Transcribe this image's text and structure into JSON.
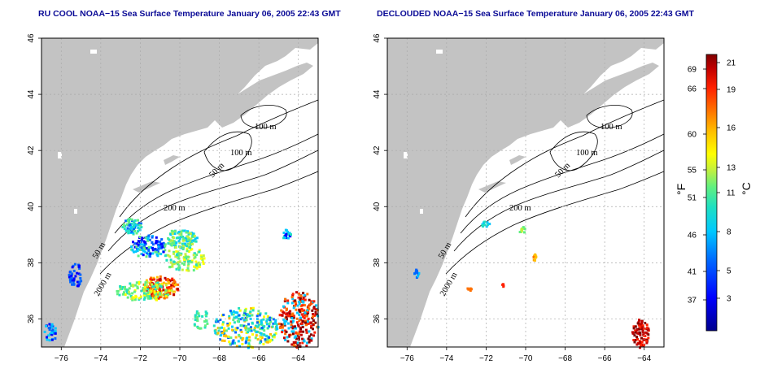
{
  "panels": [
    {
      "id": "left",
      "title": "RU COOL NOAA−15 Sea Surface Temperature January 06, 2005 22:43 GMT",
      "sst": "full"
    },
    {
      "id": "right",
      "title": "DECLOUDED NOAA−15 Sea Surface Temperature January 06, 2005 22:43 GMT",
      "sst": "declouded"
    }
  ],
  "axes": {
    "x_ticks": [
      "−76",
      "−74",
      "−72",
      "−70",
      "−68",
      "−66",
      "−64"
    ],
    "y_ticks": [
      "46",
      "44",
      "42",
      "40",
      "38",
      "36"
    ],
    "lon_range": [
      -77,
      -63
    ],
    "lat_range": [
      35,
      46
    ]
  },
  "contours": {
    "labels": [
      "100 m",
      "100 m",
      "50 m",
      "200 m",
      "50 m",
      "2000 m"
    ]
  },
  "colorbar": {
    "fahrenheit_ticks": [
      "69",
      "66",
      "60",
      "55",
      "51",
      "46",
      "41",
      "37"
    ],
    "celsius_ticks": [
      "21",
      "19",
      "16",
      "13",
      "11",
      "8",
      "5",
      "3"
    ],
    "fahrenheit_label": "°F",
    "celsius_label": "°C",
    "colors": [
      "#00008c",
      "#0000ff",
      "#0064ff",
      "#00c8ff",
      "#20e0c0",
      "#60f080",
      "#c0f040",
      "#ffff00",
      "#ffc000",
      "#ff7000",
      "#ff2000",
      "#c00000",
      "#800000"
    ]
  },
  "style": {
    "land": "#c3c3c3",
    "ocean": "#ffffff",
    "title_color": "#0a0a96",
    "grid": "#aaaaaa"
  }
}
